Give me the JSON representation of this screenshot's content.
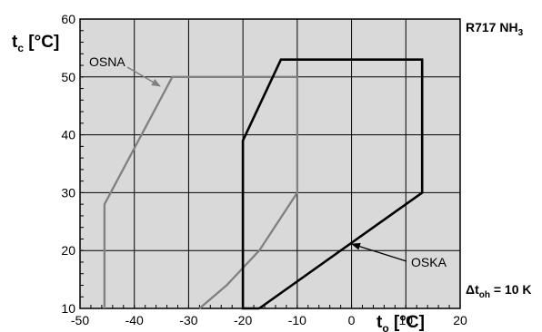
{
  "chart_data": {
    "type": "line",
    "xlabel": {
      "main": "t",
      "sub": "o",
      "rest": " [°C]"
    },
    "ylabel": {
      "main": "t",
      "sub": "c",
      "rest": " [°C]"
    },
    "xlim": [
      -50,
      20
    ],
    "ylim": [
      10,
      60
    ],
    "x_ticks": [
      -50,
      -40,
      -30,
      -20,
      -10,
      0,
      10,
      20
    ],
    "y_ticks": [
      10,
      20,
      30,
      40,
      50,
      60
    ],
    "grid": true,
    "refrigerant_label": {
      "main": "R717 NH",
      "sub": "3"
    },
    "superheat_label": {
      "pre": "Δt",
      "sub": "oh",
      "rest": " = 10 K"
    },
    "series": [
      {
        "name": "OSNA",
        "color": "#808080",
        "points": [
          [
            -45.5,
            10
          ],
          [
            -45.5,
            28
          ],
          [
            -33,
            50
          ],
          [
            -10,
            50
          ],
          [
            -10,
            30
          ],
          [
            -17,
            20
          ],
          [
            -23,
            14
          ],
          [
            -28,
            10
          ]
        ]
      },
      {
        "name": "OSKA",
        "color": "#000000",
        "points": [
          [
            -17,
            10
          ],
          [
            -20,
            10
          ],
          [
            -20,
            39
          ],
          [
            -13,
            53
          ],
          [
            13,
            53
          ],
          [
            13,
            30
          ],
          [
            -17,
            10
          ]
        ]
      }
    ],
    "annotations": [
      {
        "series": "OSNA",
        "text": "OSNA",
        "points_to": [
          -33,
          50
        ]
      },
      {
        "series": "OSKA",
        "text": "OSKA",
        "points_to": [
          0,
          21.5
        ]
      }
    ]
  }
}
